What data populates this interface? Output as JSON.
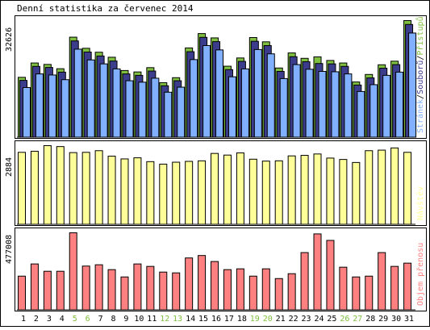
{
  "title": "Denní statistika za červenec 2014",
  "chart_data": {
    "type": "bar",
    "title": "Denní statistika za červenec 2014",
    "categories": [
      "1",
      "2",
      "3",
      "4",
      "5",
      "6",
      "7",
      "8",
      "9",
      "10",
      "11",
      "12",
      "13",
      "14",
      "15",
      "16",
      "17",
      "18",
      "19",
      "20",
      "21",
      "22",
      "23",
      "24",
      "25",
      "26",
      "27",
      "28",
      "29",
      "30",
      "31"
    ],
    "weekend_days": [
      "5",
      "6",
      "12",
      "13",
      "19",
      "20",
      "26",
      "27"
    ],
    "panels": [
      {
        "id": "hits",
        "ymax_label": "32626",
        "ymax": 32626,
        "legend": [
          "Stránek",
          "Souborů",
          "Přístupů"
        ],
        "legend_sep": "/",
        "series": [
          {
            "name": "Přístupů",
            "color": "#80c040",
            "values": [
              16800,
              20800,
              20400,
              19200,
              28000,
              24900,
              23800,
              22400,
              18700,
              18300,
              19500,
              15300,
              16700,
              25000,
              29000,
              27800,
              19900,
              22200,
              27900,
              26700,
              19400,
              23600,
              22100,
              22500,
              21500,
              20800,
              15500,
              17600,
              20300,
              21300,
              32626
            ]
          },
          {
            "name": "Souborů",
            "color": "#3c3c8c",
            "values": [
              16400,
              20300,
              20000,
              18700,
              27400,
              24300,
              23200,
              21800,
              18200,
              17800,
              19000,
              14900,
              16300,
              24400,
              28400,
              27200,
              19400,
              21700,
              27300,
              26100,
              18900,
              23000,
              21600,
              21100,
              21000,
              20300,
              15100,
              17100,
              19800,
              20800,
              32000
            ]
          },
          {
            "name": "Stránek",
            "color": "#80b0ff",
            "values": [
              15300,
              19100,
              18800,
              17500,
              26000,
              23000,
              21900,
              20500,
              17200,
              16800,
              17900,
              14000,
              15400,
              23100,
              27000,
              25800,
              18300,
              20500,
              25900,
              24700,
              17800,
              21700,
              20400,
              19800,
              19700,
              19100,
              14200,
              16100,
              18700,
              19600,
              30500
            ]
          }
        ]
      },
      {
        "id": "visits",
        "ymax_label": "2884",
        "ymax": 2884,
        "legend": [
          "Návštěv"
        ],
        "series": [
          {
            "name": "Návštěv",
            "color": "#ffff99",
            "values": [
              2640,
              2680,
              2884,
              2850,
              2630,
              2640,
              2700,
              2500,
              2400,
              2440,
              2300,
              2210,
              2280,
              2310,
              2330,
              2600,
              2540,
              2620,
              2390,
              2320,
              2330,
              2510,
              2530,
              2580,
              2430,
              2380,
              2270,
              2700,
              2720,
              2800,
              2640
            ]
          }
        ]
      },
      {
        "id": "kbytes",
        "ymax_label": "477008",
        "ymax": 477008,
        "legend": [
          "Objem přenosu"
        ],
        "series": [
          {
            "name": "Objem přenosu",
            "color": "#ff8080",
            "values": [
              210000,
              285000,
              240000,
              240000,
              477008,
              272000,
              280000,
              250000,
              205000,
              285000,
              270000,
              235000,
              230000,
              322000,
              337000,
              300000,
              250000,
              255000,
              210000,
              255000,
              195000,
              225000,
              355000,
              470000,
              430000,
              265000,
              205000,
              210000,
              355000,
              270000,
              290000
            ]
          }
        ]
      }
    ]
  }
}
